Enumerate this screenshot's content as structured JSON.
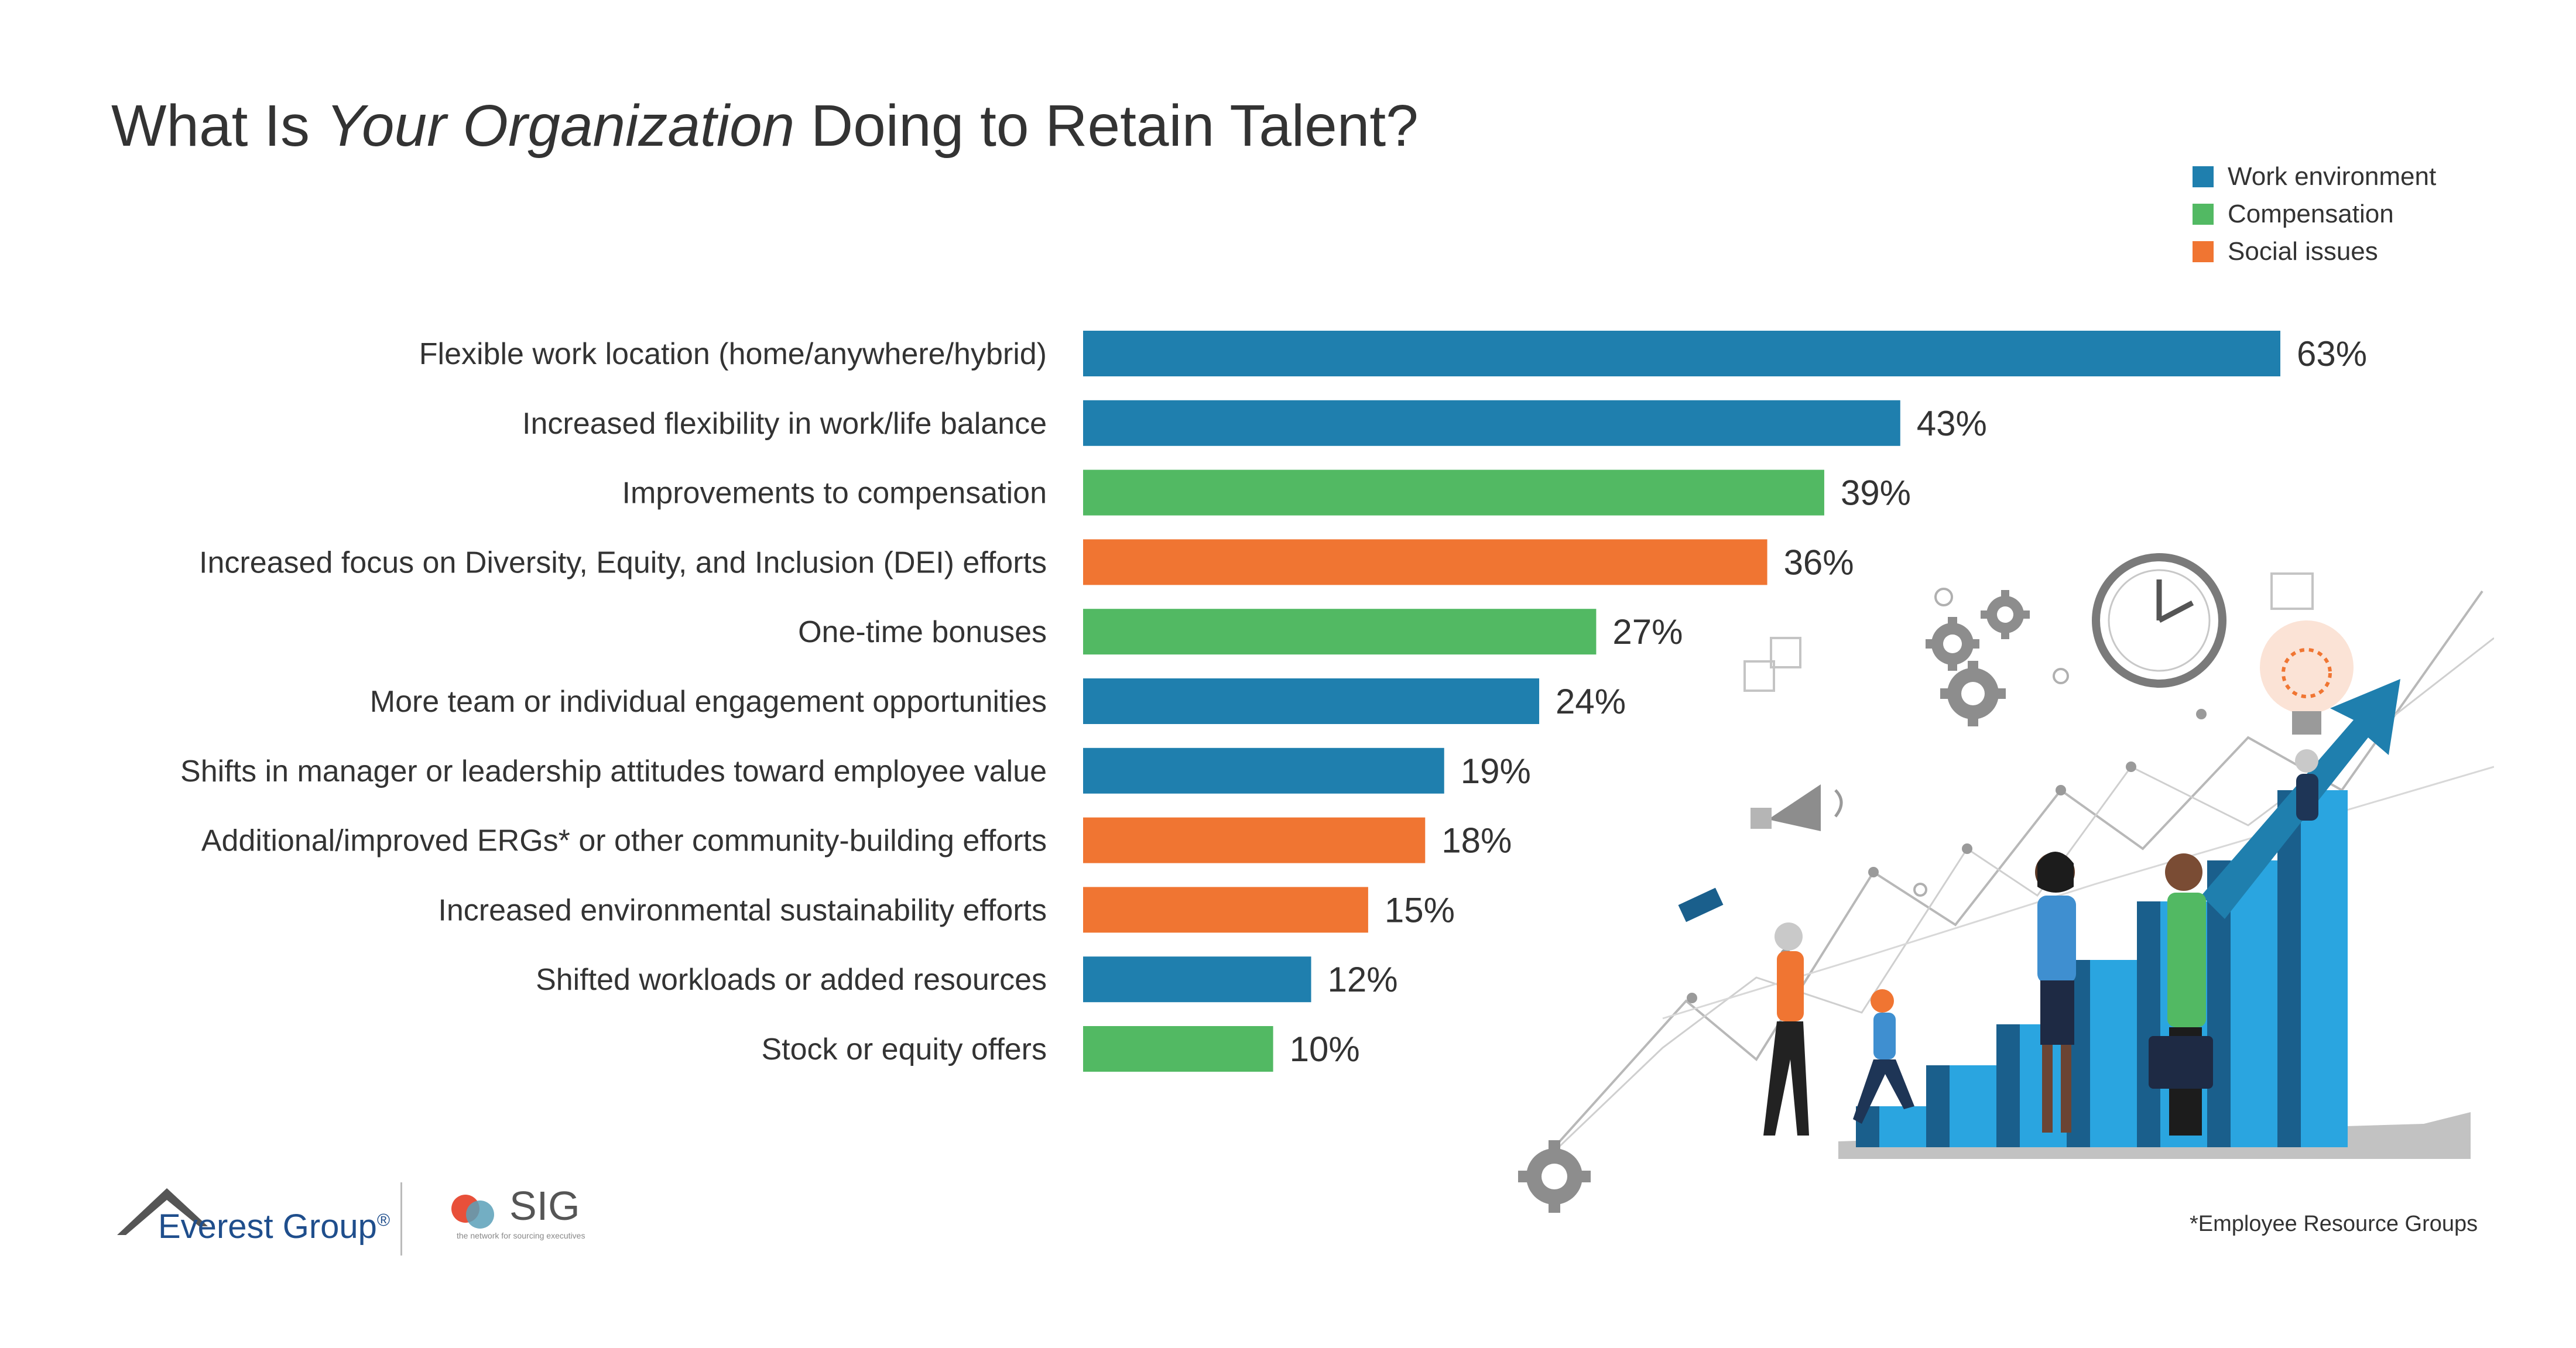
{
  "title": {
    "before": "What Is ",
    "italic": "Your Organization",
    "after": " Doing to Retain Talent?"
  },
  "legend": [
    {
      "label": "Work environment",
      "color": "#1f7fae"
    },
    {
      "label": "Compensation",
      "color": "#52b963"
    },
    {
      "label": "Social issues",
      "color": "#f07532"
    }
  ],
  "chart_data": {
    "type": "bar",
    "orientation": "horizontal",
    "title": "What Is Your Organization Doing to Retain Talent?",
    "categories": [
      "Flexible work location (home/anywhere/hybrid)",
      "Increased flexibility in work/life balance",
      "Improvements to compensation",
      "Increased focus on Diversity, Equity, and Inclusion (DEI) efforts",
      "One-time bonuses",
      "More team or individual engagement opportunities",
      "Shifts in manager or leadership attitudes toward employee value",
      "Additional/improved ERGs* or other community-building efforts",
      "Increased environmental sustainability efforts",
      "Shifted workloads or added resources",
      "Stock or equity offers"
    ],
    "values": [
      63,
      43,
      39,
      36,
      27,
      24,
      19,
      18,
      15,
      12,
      10
    ],
    "value_labels": [
      "63%",
      "43%",
      "39%",
      "36%",
      "27%",
      "24%",
      "19%",
      "18%",
      "15%",
      "12%",
      "10%"
    ],
    "groups": [
      "Work environment",
      "Work environment",
      "Compensation",
      "Social issues",
      "Compensation",
      "Work environment",
      "Work environment",
      "Social issues",
      "Social issues",
      "Work environment",
      "Compensation"
    ],
    "xlim": [
      0,
      63
    ],
    "unit": "%",
    "legend_position": "top-right",
    "grid": false
  },
  "footnote": "*Employee Resource Groups",
  "logos": {
    "everest": "Everest Group",
    "everest_mark": "®",
    "sig": "SIG",
    "sig_tagline": "the network for sourcing executives"
  }
}
